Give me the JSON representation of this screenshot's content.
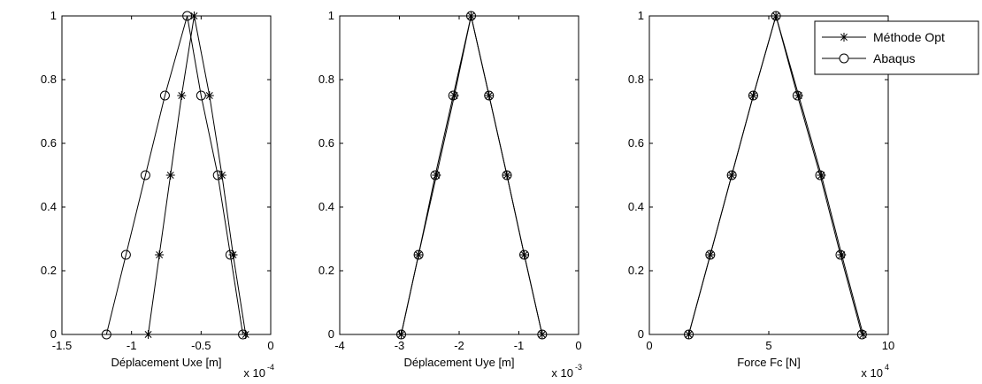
{
  "chart_data": [
    {
      "type": "line",
      "xlabel": "Déplacement Uxe [m]",
      "ylabel": "",
      "xlim": [
        -1.5,
        0
      ],
      "ylim": [
        0,
        1
      ],
      "x_ticks": [
        -1.5,
        -1,
        -0.5,
        0
      ],
      "x_tick_labels": [
        "-1.5",
        "-1",
        "-0.5",
        "0"
      ],
      "y_ticks": [
        0,
        0.2,
        0.4,
        0.6,
        0.8,
        1
      ],
      "y_tick_labels": [
        "0",
        "0.2",
        "0.4",
        "0.6",
        "0.8",
        "1"
      ],
      "multiplier_base": "x 10",
      "multiplier_exp": "-4",
      "grid": false,
      "series": [
        {
          "name": "Méthode Opt",
          "marker": "star",
          "x": [
            -0.88,
            -0.8,
            -0.72,
            -0.64,
            -0.55,
            -0.44,
            -0.35,
            -0.27,
            -0.18
          ],
          "y": [
            0,
            0.25,
            0.5,
            0.75,
            1,
            0.75,
            0.5,
            0.25,
            0
          ]
        },
        {
          "name": "Abaqus",
          "marker": "circle",
          "x": [
            -1.18,
            -1.04,
            -0.9,
            -0.76,
            -0.6,
            -0.5,
            -0.38,
            -0.29,
            -0.2
          ],
          "y": [
            0,
            0.25,
            0.5,
            0.75,
            1,
            0.75,
            0.5,
            0.25,
            0
          ]
        }
      ]
    },
    {
      "type": "line",
      "xlabel": "Déplacement Uye [m]",
      "ylabel": "",
      "xlim": [
        -4,
        0
      ],
      "ylim": [
        0,
        1
      ],
      "x_ticks": [
        -4,
        -3,
        -2,
        -1,
        0
      ],
      "x_tick_labels": [
        "-4",
        "-3",
        "-2",
        "-1",
        "0"
      ],
      "y_ticks": [
        0,
        0.2,
        0.4,
        0.6,
        0.8,
        1
      ],
      "y_tick_labels": [
        "0",
        "0.2",
        "0.4",
        "0.6",
        "0.8",
        "1"
      ],
      "multiplier_base": "x 10",
      "multiplier_exp": "-3",
      "grid": false,
      "series": [
        {
          "name": "Méthode Opt",
          "marker": "star",
          "x": [
            -2.97,
            -2.68,
            -2.38,
            -2.08,
            -1.8,
            -1.5,
            -1.2,
            -0.91,
            -0.61
          ],
          "y": [
            0,
            0.25,
            0.5,
            0.75,
            1,
            0.75,
            0.5,
            0.25,
            0
          ]
        },
        {
          "name": "Abaqus",
          "marker": "circle",
          "x": [
            -2.97,
            -2.68,
            -2.4,
            -2.1,
            -1.8,
            -1.5,
            -1.2,
            -0.91,
            -0.61
          ],
          "y": [
            0,
            0.25,
            0.5,
            0.75,
            1,
            0.75,
            0.5,
            0.25,
            0
          ]
        }
      ]
    },
    {
      "type": "line",
      "xlabel": "Force Fc [N]",
      "ylabel": "",
      "xlim": [
        0,
        10
      ],
      "ylim": [
        0,
        1
      ],
      "x_ticks": [
        0,
        5,
        10
      ],
      "x_tick_labels": [
        "0",
        "5",
        "10"
      ],
      "y_ticks": [
        0,
        0.2,
        0.4,
        0.6,
        0.8,
        1
      ],
      "y_tick_labels": [
        "0",
        "0.2",
        "0.4",
        "0.6",
        "0.8",
        "1"
      ],
      "multiplier_base": "x 10",
      "multiplier_exp": "4",
      "grid": false,
      "legend": {
        "position": "top-right",
        "entries": [
          "Méthode Opt",
          "Abaqus"
        ]
      },
      "series": [
        {
          "name": "Méthode Opt",
          "marker": "star",
          "x": [
            1.65,
            2.55,
            3.45,
            4.35,
            5.3,
            6.25,
            7.2,
            8.05,
            8.95
          ],
          "y": [
            0,
            0.25,
            0.5,
            0.75,
            1,
            0.75,
            0.5,
            0.25,
            0
          ]
        },
        {
          "name": "Abaqus",
          "marker": "circle",
          "x": [
            1.65,
            2.55,
            3.45,
            4.35,
            5.3,
            6.2,
            7.15,
            8.0,
            8.9
          ],
          "y": [
            0,
            0.25,
            0.5,
            0.75,
            1,
            0.75,
            0.5,
            0.25,
            0
          ]
        }
      ]
    }
  ]
}
